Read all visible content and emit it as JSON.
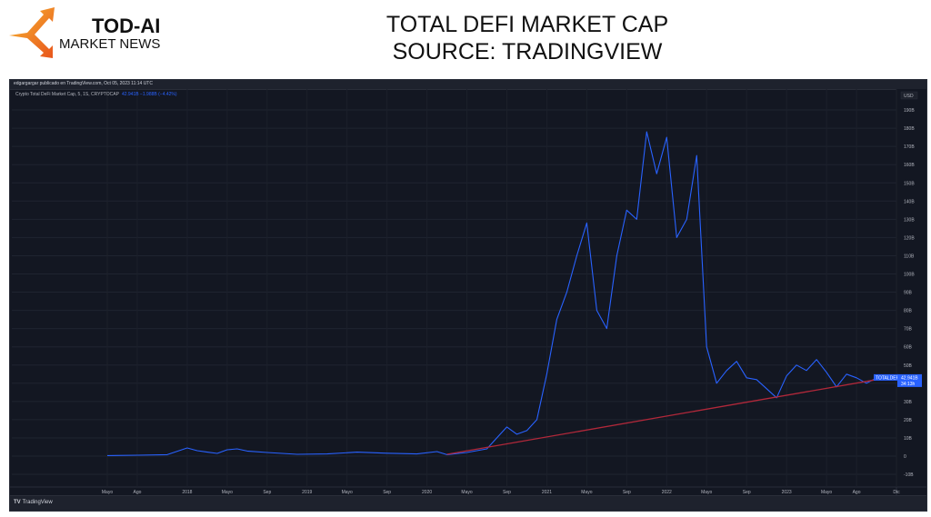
{
  "logo": {
    "title": "TOD-AI",
    "subtitle": "MARKET NEWS",
    "arrow_colors": [
      "#f7b731",
      "#e8541c"
    ]
  },
  "page_title": {
    "line1": "TOTAL DEFI MARKET CAP",
    "line2": "SOURCE: TRADINGVIEW"
  },
  "tradingview": {
    "published_note": "edgargargar publicado en TradingView.com, Oct 05, 2023 11:14 UTC",
    "legend_symbol": "Crypto Total DeFi Market Cap, 5, 1S, CRYPTOCAP",
    "legend_values": "42.941B −1.988B (−4.42%)",
    "currency": "USD",
    "price_tag_symbol": "TOTALDEFI",
    "price_tag_value": "42.941B",
    "price_tag_countdown": "34:13h",
    "footer_brand": "TradingView",
    "colors": {
      "background": "#131722",
      "line": "#2962ff",
      "trendline": "#b2283a",
      "text": "#b2b5be"
    }
  },
  "chart_data": {
    "type": "line",
    "title": "Crypto Total DeFi Market Cap (TOTALDEFI), CRYPTOCAP",
    "xlabel": "",
    "ylabel": "USD",
    "ylim": [
      -10,
      190
    ],
    "y_unit": "B (billions USD)",
    "y_ticks": [
      "190B",
      "180B",
      "170B",
      "160B",
      "150B",
      "140B",
      "130B",
      "120B",
      "110B",
      "100B",
      "90B",
      "80B",
      "70B",
      "60B",
      "50B",
      "40B",
      "30B",
      "20B",
      "10B",
      "0",
      "-10B"
    ],
    "x_ticks": [
      "Mayo",
      "Ago",
      "2018",
      "Mayo",
      "Sep",
      "2019",
      "Mayo",
      "Sep",
      "2020",
      "Mayo",
      "Sep",
      "2021",
      "Mayo",
      "Sep",
      "2022",
      "Mayo",
      "Sep",
      "2023",
      "Mayo",
      "Ago",
      "Dic"
    ],
    "grid": true,
    "legend_position": "top-left",
    "last_value": 42.941,
    "change": -1.988,
    "change_pct": -4.42,
    "series": [
      {
        "name": "TOTALDEFI",
        "color": "#2962ff",
        "points_date_value": [
          [
            "2017-05",
            0.3
          ],
          [
            "2017-08",
            0.5
          ],
          [
            "2017-11",
            0.8
          ],
          [
            "2018-01",
            4.5
          ],
          [
            "2018-02",
            3.0
          ],
          [
            "2018-03",
            2.2
          ],
          [
            "2018-04",
            1.5
          ],
          [
            "2018-05",
            3.5
          ],
          [
            "2018-06",
            4.0
          ],
          [
            "2018-07",
            2.8
          ],
          [
            "2018-09",
            2.0
          ],
          [
            "2018-12",
            1.0
          ],
          [
            "2019-03",
            1.2
          ],
          [
            "2019-06",
            2.2
          ],
          [
            "2019-09",
            1.6
          ],
          [
            "2019-12",
            1.2
          ],
          [
            "2020-02",
            2.5
          ],
          [
            "2020-03",
            0.8
          ],
          [
            "2020-05",
            2.0
          ],
          [
            "2020-07",
            4.0
          ],
          [
            "2020-08",
            10.0
          ],
          [
            "2020-09",
            16.0
          ],
          [
            "2020-10",
            12.0
          ],
          [
            "2020-11",
            14.0
          ],
          [
            "2020-12",
            20.0
          ],
          [
            "2021-01",
            45.0
          ],
          [
            "2021-02",
            75.0
          ],
          [
            "2021-03",
            90.0
          ],
          [
            "2021-04",
            110.0
          ],
          [
            "2021-05",
            128.0
          ],
          [
            "2021-06",
            80.0
          ],
          [
            "2021-07",
            70.0
          ],
          [
            "2021-08",
            110.0
          ],
          [
            "2021-09",
            135.0
          ],
          [
            "2021-10",
            130.0
          ],
          [
            "2021-11",
            178.0
          ],
          [
            "2021-12",
            155.0
          ],
          [
            "2022-01",
            175.0
          ],
          [
            "2022-02",
            120.0
          ],
          [
            "2022-03",
            130.0
          ],
          [
            "2022-04",
            165.0
          ],
          [
            "2022-05",
            60.0
          ],
          [
            "2022-06",
            40.0
          ],
          [
            "2022-07",
            47.0
          ],
          [
            "2022-08",
            52.0
          ],
          [
            "2022-09",
            43.0
          ],
          [
            "2022-10",
            42.0
          ],
          [
            "2022-11",
            37.0
          ],
          [
            "2022-12",
            32.0
          ],
          [
            "2023-01",
            44.0
          ],
          [
            "2023-02",
            50.0
          ],
          [
            "2023-03",
            47.0
          ],
          [
            "2023-04",
            53.0
          ],
          [
            "2023-05",
            46.0
          ],
          [
            "2023-06",
            38.0
          ],
          [
            "2023-07",
            45.0
          ],
          [
            "2023-08",
            43.0
          ],
          [
            "2023-09",
            40.0
          ],
          [
            "2023-10",
            42.9
          ]
        ]
      },
      {
        "name": "Trendline",
        "color": "#b2283a",
        "points_date_value": [
          [
            "2020-03",
            1.0
          ],
          [
            "2023-10",
            42.0
          ]
        ]
      }
    ]
  }
}
